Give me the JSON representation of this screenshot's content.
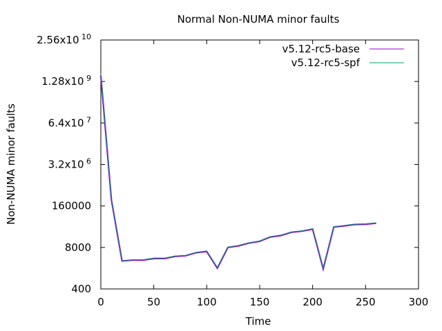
{
  "chart_data": {
    "type": "line",
    "title": "Normal Non-NUMA minor faults",
    "xlabel": "Time",
    "ylabel": "Non-NUMA minor faults",
    "xlim": [
      0,
      300
    ],
    "ylim": [
      400,
      25600000000
    ],
    "yscale": "log",
    "xticks": [
      {
        "value": 0,
        "label": "0"
      },
      {
        "value": 50,
        "label": "50"
      },
      {
        "value": 100,
        "label": "100"
      },
      {
        "value": 150,
        "label": "150"
      },
      {
        "value": 200,
        "label": "200"
      },
      {
        "value": 250,
        "label": "250"
      },
      {
        "value": 300,
        "label": "300"
      }
    ],
    "yticks": [
      {
        "value": 400,
        "label": "400",
        "mant": "400",
        "exp": ""
      },
      {
        "value": 8000,
        "label": "8000",
        "mant": "8000",
        "exp": ""
      },
      {
        "value": 160000,
        "label": "160000",
        "mant": "160000",
        "exp": ""
      },
      {
        "value": 3200000,
        "label": "3.2x10^6",
        "mant": "3.2x10",
        "exp": "6"
      },
      {
        "value": 64000000,
        "label": "6.4x10^7",
        "mant": "6.4x10",
        "exp": "7"
      },
      {
        "value": 1280000000,
        "label": "1.28x10^9",
        "mant": "1.28x10",
        "exp": "9"
      },
      {
        "value": 25600000000,
        "label": "2.56x10^10",
        "mant": "2.56x10",
        "exp": "10"
      }
    ],
    "legend_position": "top-right",
    "grid": false,
    "series": [
      {
        "name": "v5.12-rc5-base",
        "color": "#9400d3",
        "x": [
          0,
          10,
          20,
          30,
          40,
          50,
          60,
          70,
          80,
          90,
          100,
          110,
          120,
          130,
          140,
          150,
          160,
          170,
          180,
          190,
          200,
          210,
          220,
          230,
          240,
          250,
          260
        ],
        "y": [
          2000000000,
          250000,
          3000,
          3200,
          3200,
          3600,
          3600,
          4200,
          4400,
          5500,
          6000,
          1800,
          8000,
          9000,
          11000,
          12500,
          17000,
          19000,
          24000,
          26000,
          30000,
          1700,
          35000,
          38000,
          42000,
          43000,
          46000
        ]
      },
      {
        "name": "v5.12-rc5-spf",
        "color": "#009e73",
        "x": [
          0,
          10,
          20,
          30,
          40,
          50,
          60,
          70,
          80,
          90,
          100,
          110,
          120,
          130,
          140,
          150,
          160,
          170,
          180,
          190,
          200,
          210,
          220,
          230,
          240,
          250,
          260
        ],
        "y": [
          2200000000,
          260000,
          3000,
          3300,
          3300,
          3700,
          3700,
          4300,
          4500,
          5600,
          6200,
          1900,
          8200,
          9200,
          11200,
          12800,
          17500,
          19500,
          24500,
          26500,
          31000,
          1750,
          36000,
          39000,
          43000,
          44000,
          47000
        ]
      }
    ]
  }
}
